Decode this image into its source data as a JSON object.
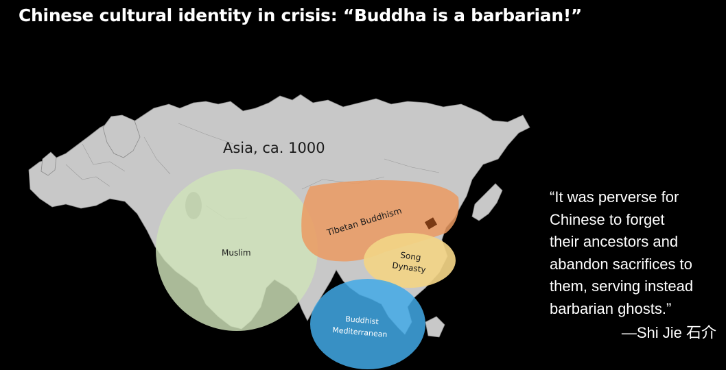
{
  "slide": {
    "title": "Chinese cultural identity in crisis: “Buddha is a barbarian!”"
  },
  "map": {
    "title": "Asia, ca. 1000",
    "regions": {
      "muslim": "Muslim",
      "tibetan": "Tibetan Buddhism",
      "song_line1": "Song",
      "song_line2": "Dynasty",
      "buddhist_line1": "Buddhist",
      "buddhist_line2": "Mediterranean"
    },
    "colors": {
      "land": "#c8c8c8",
      "muslim": "#cfe3b9",
      "tibetan": "#eb9a62",
      "song": "#f2d486",
      "buddhist": "#42a9e6"
    }
  },
  "quote": {
    "lines": [
      "“It was perverse for",
      "Chinese to forget",
      "their ancestors and",
      "abandon sacrifices to",
      "them, serving instead",
      "barbarian ghosts.”"
    ],
    "attribution": "—Shi Jie 石介"
  }
}
